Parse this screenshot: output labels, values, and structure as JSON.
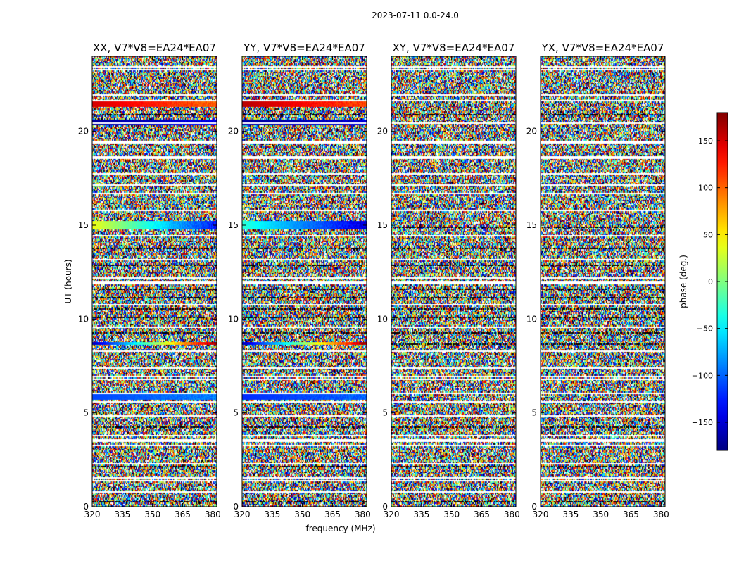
{
  "chart_data": {
    "type": "heatmap",
    "suptitle": "2023-07-11 0.0-24.0",
    "xlabel": "frequency (MHz)",
    "ylabel": "UT (hours)",
    "xlim": [
      320,
      382
    ],
    "ylim": [
      0,
      24
    ],
    "xticks": [
      320,
      335,
      350,
      365,
      380
    ],
    "yticks": [
      0,
      5,
      10,
      15,
      20
    ],
    "colorbar": {
      "label": "phase (deg.)",
      "range": [
        -180,
        180
      ],
      "ticks": [
        150,
        100,
        50,
        0,
        -50,
        -100,
        -150
      ],
      "tick_labels": [
        "150",
        "100",
        "50",
        "0",
        "−50",
        "−100",
        "−150"
      ],
      "colormap": "jet",
      "footer": "....."
    },
    "panels": [
      {
        "title": "XX, V7*V8=EA24*EA07",
        "pol": "XX",
        "coherent_bands": [
          {
            "ut_start": 14.8,
            "ut_end": 15.2,
            "phase_start": 40,
            "phase_end": -130
          },
          {
            "ut_start": 21.3,
            "ut_end": 21.6,
            "phase_start": 150,
            "phase_end": 100
          },
          {
            "ut_start": 20.3,
            "ut_end": 20.6,
            "phase_start": -170,
            "phase_end": -140
          },
          {
            "ut_start": 5.7,
            "ut_end": 6.0,
            "phase_start": -110,
            "phase_end": -90
          },
          {
            "ut_start": 8.6,
            "ut_end": 8.8,
            "phase_start": -160,
            "phase_end": 170
          }
        ]
      },
      {
        "title": "YY, V7*V8=EA24*EA07",
        "pol": "YY",
        "coherent_bands": [
          {
            "ut_start": 14.8,
            "ut_end": 15.2,
            "phase_start": -30,
            "phase_end": -150
          },
          {
            "ut_start": 21.3,
            "ut_end": 21.6,
            "phase_start": 160,
            "phase_end": 110
          },
          {
            "ut_start": 20.3,
            "ut_end": 20.6,
            "phase_start": -170,
            "phase_end": -150
          },
          {
            "ut_start": 5.7,
            "ut_end": 6.0,
            "phase_start": -120,
            "phase_end": -100
          },
          {
            "ut_start": 8.6,
            "ut_end": 8.8,
            "phase_start": -160,
            "phase_end": 170
          }
        ]
      },
      {
        "title": "XY, V7*V8=EA24*EA07",
        "pol": "XY",
        "coherent_bands": []
      },
      {
        "title": "YX, V7*V8=EA24*EA07",
        "pol": "YX",
        "coherent_bands": []
      }
    ],
    "flagged_ut_hours": [
      0.8,
      1.4,
      1.6,
      2.3,
      3.3,
      3.5,
      3.6,
      3.8,
      4.9,
      5.6,
      6.1,
      6.8,
      7.0,
      7.4,
      8.3,
      9.6,
      10.8,
      11.9,
      12.0,
      12.2,
      13.2,
      14.5,
      15.8,
      16.7,
      17.2,
      17.8,
      18.6,
      18.7,
      19.4,
      19.5,
      20.5,
      21.7,
      22.0,
      23.3,
      23.5
    ],
    "dark_ut_hours": [
      0.3,
      2.2,
      4.3,
      8.7,
      9.3,
      10.1,
      10.6,
      11.2,
      11.6,
      12.9,
      13.8,
      14.9,
      20.9
    ]
  }
}
